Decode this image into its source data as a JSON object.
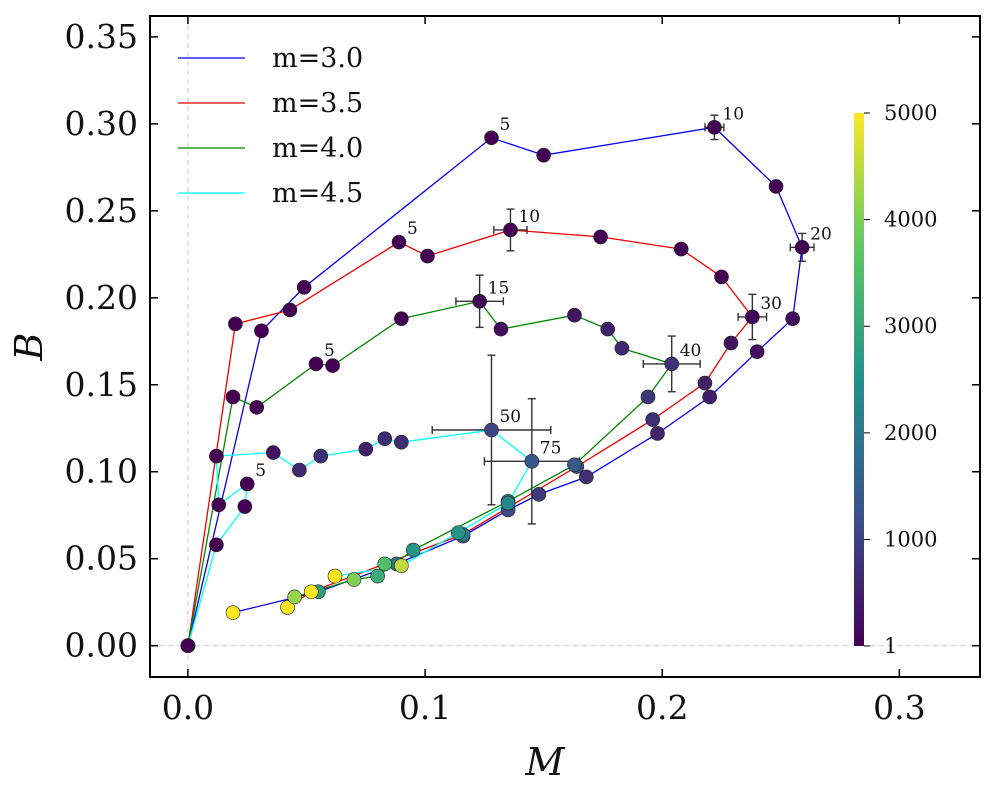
{
  "chart_data": {
    "type": "scatter",
    "xlabel": "M",
    "ylabel": "B",
    "xlim": [
      -0.016,
      0.334
    ],
    "ylim": [
      -0.018,
      0.362
    ],
    "xticks": [
      0.0,
      0.1,
      0.2,
      0.3
    ],
    "xtick_labels": [
      "0.0",
      "0.1",
      "0.2",
      "0.3"
    ],
    "yticks": [
      0.0,
      0.05,
      0.1,
      0.15,
      0.2,
      0.25,
      0.3,
      0.35
    ],
    "ytick_labels": [
      "0.00",
      "0.05",
      "0.10",
      "0.15",
      "0.20",
      "0.25",
      "0.30",
      "0.35"
    ],
    "reference_lines": {
      "x": 0,
      "y": 0
    },
    "legend": {
      "location": "upper-left"
    },
    "colorbar": {
      "range": [
        1,
        5000
      ],
      "ticks": [
        1,
        1000,
        2000,
        3000,
        4000,
        5000
      ],
      "tick_labels": [
        "1",
        "1000",
        "2000",
        "3000",
        "4000",
        "5000"
      ],
      "colormap": [
        "#440154",
        "#3b528b",
        "#21918c",
        "#5ec962",
        "#fde725"
      ]
    },
    "series": [
      {
        "name": "m=3.0",
        "color": "#0000ee",
        "points": [
          {
            "x": 0.0,
            "y": 0.0,
            "c": 1
          },
          {
            "x": 0.031,
            "y": 0.181,
            "c": 1
          },
          {
            "x": 0.049,
            "y": 0.206,
            "c": 1
          },
          {
            "x": 0.128,
            "y": 0.292,
            "c": 1,
            "label": "5"
          },
          {
            "x": 0.15,
            "y": 0.282,
            "c": 1
          },
          {
            "x": 0.222,
            "y": 0.298,
            "c": 1,
            "label": "10",
            "xerr": 0.004,
            "yerr": 0.007
          },
          {
            "x": 0.248,
            "y": 0.264,
            "c": 1
          },
          {
            "x": 0.259,
            "y": 0.229,
            "c": 1,
            "label": "20",
            "xerr": 0.005,
            "yerr": 0.008
          },
          {
            "x": 0.255,
            "y": 0.188,
            "c": 150
          },
          {
            "x": 0.24,
            "y": 0.169,
            "c": 200
          },
          {
            "x": 0.22,
            "y": 0.143,
            "c": 450
          },
          {
            "x": 0.198,
            "y": 0.122,
            "c": 550
          },
          {
            "x": 0.168,
            "y": 0.097,
            "c": 700
          },
          {
            "x": 0.148,
            "y": 0.087,
            "c": 900
          },
          {
            "x": 0.135,
            "y": 0.078,
            "c": 1100
          },
          {
            "x": 0.116,
            "y": 0.063,
            "c": 1400
          },
          {
            "x": 0.088,
            "y": 0.047,
            "c": 1900
          },
          {
            "x": 0.055,
            "y": 0.031,
            "c": 2800
          },
          {
            "x": 0.019,
            "y": 0.019,
            "c": 5000
          }
        ]
      },
      {
        "name": "m=3.5",
        "color": "#ee0000",
        "points": [
          {
            "x": 0.0,
            "y": 0.0,
            "c": 1
          },
          {
            "x": 0.02,
            "y": 0.185,
            "c": 1
          },
          {
            "x": 0.043,
            "y": 0.193,
            "c": 1
          },
          {
            "x": 0.089,
            "y": 0.232,
            "c": 1,
            "label": "5"
          },
          {
            "x": 0.101,
            "y": 0.224,
            "c": 1
          },
          {
            "x": 0.136,
            "y": 0.239,
            "c": 1,
            "label": "10",
            "xerr": 0.007,
            "yerr": 0.012
          },
          {
            "x": 0.174,
            "y": 0.235,
            "c": 1
          },
          {
            "x": 0.208,
            "y": 0.228,
            "c": 1
          },
          {
            "x": 0.225,
            "y": 0.212,
            "c": 1
          },
          {
            "x": 0.238,
            "y": 0.189,
            "c": 100,
            "label": "30",
            "xerr": 0.006,
            "yerr": 0.013
          },
          {
            "x": 0.229,
            "y": 0.174,
            "c": 300
          },
          {
            "x": 0.218,
            "y": 0.151,
            "c": 500
          },
          {
            "x": 0.196,
            "y": 0.13,
            "c": 700
          },
          {
            "x": 0.164,
            "y": 0.103,
            "c": 1300
          },
          {
            "x": 0.116,
            "y": 0.064,
            "c": 2100
          },
          {
            "x": 0.083,
            "y": 0.047,
            "c": 3500
          },
          {
            "x": 0.052,
            "y": 0.031,
            "c": 5000
          },
          {
            "x": 0.042,
            "y": 0.022,
            "c": 5000
          }
        ]
      },
      {
        "name": "m=4.0",
        "color": "#008800",
        "points": [
          {
            "x": 0.0,
            "y": 0.0,
            "c": 1
          },
          {
            "x": 0.019,
            "y": 0.143,
            "c": 1
          },
          {
            "x": 0.029,
            "y": 0.137,
            "c": 1
          },
          {
            "x": 0.054,
            "y": 0.162,
            "c": 1,
            "label": "5"
          },
          {
            "x": 0.061,
            "y": 0.161,
            "c": 1
          },
          {
            "x": 0.09,
            "y": 0.188,
            "c": 1
          },
          {
            "x": 0.123,
            "y": 0.198,
            "c": 100,
            "label": "15",
            "xerr": 0.01,
            "yerr": 0.015
          },
          {
            "x": 0.132,
            "y": 0.182,
            "c": 200
          },
          {
            "x": 0.163,
            "y": 0.19,
            "c": 300
          },
          {
            "x": 0.177,
            "y": 0.182,
            "c": 450
          },
          {
            "x": 0.183,
            "y": 0.171,
            "c": 600
          },
          {
            "x": 0.204,
            "y": 0.162,
            "c": 750,
            "label": "40",
            "xerr": 0.012,
            "yerr": 0.016
          },
          {
            "x": 0.194,
            "y": 0.143,
            "c": 850
          },
          {
            "x": 0.163,
            "y": 0.104,
            "c": 1400
          },
          {
            "x": 0.135,
            "y": 0.083,
            "c": 2100
          },
          {
            "x": 0.095,
            "y": 0.055,
            "c": 2600
          },
          {
            "x": 0.08,
            "y": 0.04,
            "c": 3100
          },
          {
            "x": 0.07,
            "y": 0.038,
            "c": 4000
          },
          {
            "x": 0.045,
            "y": 0.028,
            "c": 4200
          }
        ]
      },
      {
        "name": "m=4.5",
        "color": "#00ffff",
        "points": [
          {
            "x": 0.0,
            "y": 0.0,
            "c": 1
          },
          {
            "x": 0.012,
            "y": 0.058,
            "c": 1
          },
          {
            "x": 0.024,
            "y": 0.08,
            "c": 1
          },
          {
            "x": 0.025,
            "y": 0.093,
            "c": 1,
            "label": "5"
          },
          {
            "x": 0.013,
            "y": 0.081,
            "c": 1
          },
          {
            "x": 0.012,
            "y": 0.109,
            "c": 1
          },
          {
            "x": 0.036,
            "y": 0.111,
            "c": 300
          },
          {
            "x": 0.047,
            "y": 0.101,
            "c": 600
          },
          {
            "x": 0.056,
            "y": 0.109,
            "c": 700
          },
          {
            "x": 0.075,
            "y": 0.113,
            "c": 500
          },
          {
            "x": 0.083,
            "y": 0.119,
            "c": 650
          },
          {
            "x": 0.09,
            "y": 0.117,
            "c": 700
          },
          {
            "x": 0.128,
            "y": 0.124,
            "c": 1050,
            "label": "50",
            "xerr": 0.025,
            "yerr": 0.043
          },
          {
            "x": 0.145,
            "y": 0.106,
            "c": 1350,
            "label": "75",
            "xerr": 0.02,
            "yerr": 0.036
          },
          {
            "x": 0.135,
            "y": 0.082,
            "c": 2300
          },
          {
            "x": 0.114,
            "y": 0.065,
            "c": 2600
          },
          {
            "x": 0.09,
            "y": 0.046,
            "c": 4500
          },
          {
            "x": 0.062,
            "y": 0.04,
            "c": 5000
          }
        ]
      }
    ]
  }
}
